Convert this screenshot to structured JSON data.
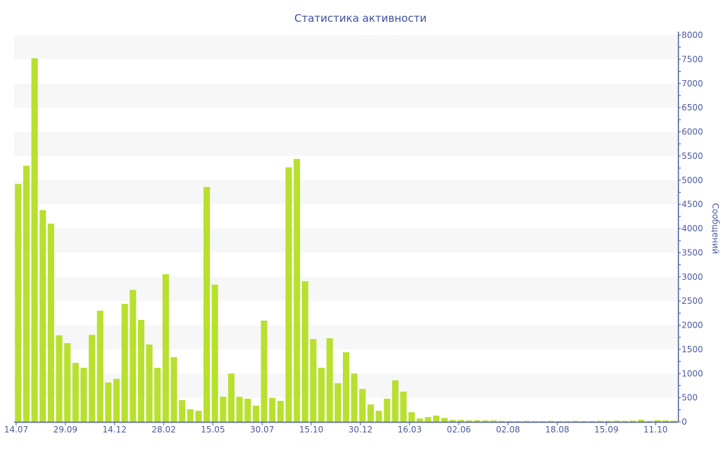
{
  "chart_data": {
    "type": "bar",
    "title": "Статистика активности",
    "ylabel": "Сообщений",
    "xlabel": "",
    "ylim": [
      0,
      8000
    ],
    "yticks": [
      0,
      500,
      1000,
      1500,
      2000,
      2500,
      3000,
      3500,
      4000,
      4500,
      5000,
      5500,
      6000,
      6500,
      7000,
      7500,
      8000
    ],
    "x_tick_labels": [
      {
        "index": 0,
        "label": "14.07"
      },
      {
        "index": 6,
        "label": "29.09"
      },
      {
        "index": 12,
        "label": "14.12"
      },
      {
        "index": 18,
        "label": "28.02"
      },
      {
        "index": 24,
        "label": "15.05"
      },
      {
        "index": 30,
        "label": "30.07"
      },
      {
        "index": 36,
        "label": "15.10"
      },
      {
        "index": 42,
        "label": "30.12"
      },
      {
        "index": 48,
        "label": "16.03"
      },
      {
        "index": 54,
        "label": "02.06"
      },
      {
        "index": 60,
        "label": "02.08"
      },
      {
        "index": 66,
        "label": "18.08"
      },
      {
        "index": 72,
        "label": "15.09"
      },
      {
        "index": 78,
        "label": "11.10"
      }
    ],
    "values": [
      4920,
      5300,
      7520,
      4380,
      4100,
      1790,
      1630,
      1220,
      1120,
      1800,
      2300,
      815,
      890,
      2440,
      2730,
      2110,
      1600,
      1120,
      3055,
      1340,
      450,
      260,
      230,
      4860,
      2840,
      520,
      1000,
      520,
      480,
      335,
      2095,
      495,
      435,
      5265,
      5440,
      2910,
      1715,
      1120,
      1730,
      800,
      1440,
      1000,
      680,
      360,
      230,
      480,
      860,
      625,
      200,
      70,
      100,
      130,
      80,
      40,
      40,
      30,
      35,
      30,
      30,
      20,
      15,
      15,
      20,
      15,
      15,
      20,
      15,
      15,
      20,
      15,
      15,
      20,
      20,
      25,
      20,
      25,
      45,
      20,
      35,
      30,
      25
    ],
    "grid": "alternating bands",
    "colors": {
      "bar": "#b8e02e",
      "axis": "#4a5a9e",
      "band": "#f7f7f7",
      "title": "#3d4f9f"
    }
  }
}
